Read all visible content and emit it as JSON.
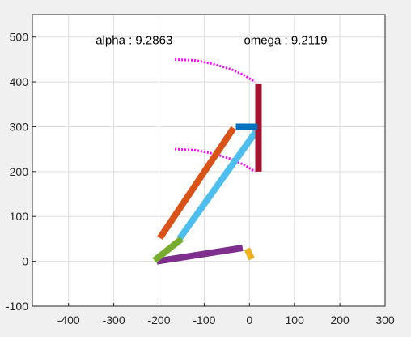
{
  "chart_data": {
    "type": "line",
    "title": "",
    "xlabel": "",
    "ylabel": "",
    "xlim": [
      -480,
      300
    ],
    "ylim": [
      -100,
      550
    ],
    "grid": true,
    "x_ticks": [
      -400,
      -300,
      -200,
      -100,
      0,
      100,
      200,
      300
    ],
    "y_ticks": [
      -100,
      0,
      100,
      200,
      300,
      400,
      500
    ],
    "annotations": [
      {
        "name": "alpha",
        "text": "alpha : 9.2863",
        "x": -255,
        "y": 493
      },
      {
        "name": "omega",
        "text": "omega : 9.2119",
        "x": 80,
        "y": 493
      }
    ],
    "links": [
      {
        "name": "orange-link",
        "color": "#d95319",
        "from": [
          -198,
          52
        ],
        "to": [
          -35,
          297
        ]
      },
      {
        "name": "sky-blue-link",
        "color": "#4dbeee",
        "from": [
          -155,
          50
        ],
        "to": [
          15,
          290
        ]
      },
      {
        "name": "purple-link",
        "color": "#7e2f8e",
        "from": [
          -205,
          0
        ],
        "to": [
          -15,
          30
        ]
      },
      {
        "name": "yellow-link",
        "color": "#edb120",
        "from": [
          -5,
          28
        ],
        "to": [
          5,
          5
        ]
      },
      {
        "name": "green-link",
        "color": "#77ac30",
        "from": [
          -210,
          2
        ],
        "to": [
          -150,
          50
        ]
      },
      {
        "name": "crimson-link",
        "color": "#a2142f",
        "from": [
          20,
          395
        ],
        "to": [
          20,
          200
        ]
      },
      {
        "name": "blue-link",
        "color": "#0072bd",
        "from": [
          -30,
          300
        ],
        "to": [
          18,
          300
        ]
      }
    ],
    "traces": [
      {
        "name": "upper-magenta-trace",
        "color": "#ff00ff",
        "points": [
          [
            -165,
            450
          ],
          [
            -120,
            448
          ],
          [
            -80,
            440
          ],
          [
            -40,
            428
          ],
          [
            -10,
            414
          ],
          [
            12,
            400
          ]
        ]
      },
      {
        "name": "lower-magenta-trace",
        "color": "#ff00ff",
        "points": [
          [
            -165,
            250
          ],
          [
            -120,
            248
          ],
          [
            -80,
            240
          ],
          [
            -40,
            228
          ],
          [
            -10,
            214
          ],
          [
            12,
            200
          ]
        ]
      }
    ]
  }
}
